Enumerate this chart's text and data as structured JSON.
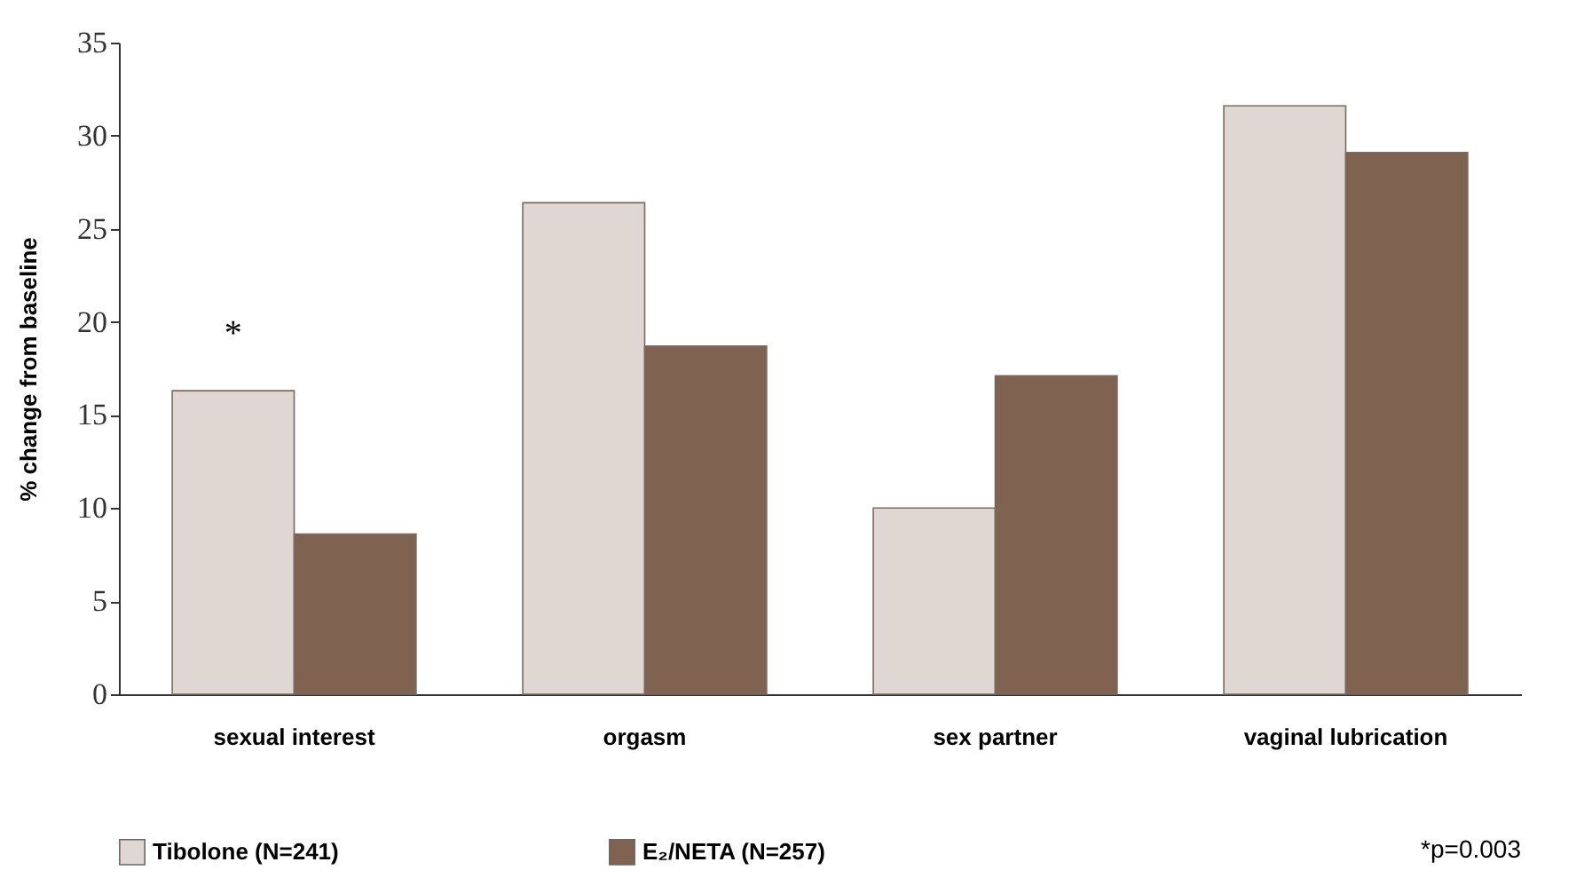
{
  "chart_data": {
    "type": "bar",
    "ylabel": "% change from baseline",
    "categories": [
      "sexual interest",
      "orgasm",
      "sex partner",
      "vaginal lubrication"
    ],
    "series": [
      {
        "name": "Tibolone (N=241)",
        "color": "#e0d7d2",
        "values": [
          16.3,
          26.4,
          10.0,
          31.6
        ]
      },
      {
        "name": "E₂/NETA (N=257)",
        "color": "#7f6350",
        "values": [
          8.6,
          18.7,
          17.1,
          29.1
        ]
      }
    ],
    "ylim": [
      0,
      35
    ],
    "yticks": [
      0,
      5,
      10,
      15,
      20,
      25,
      30,
      35
    ],
    "grid": false,
    "legend": "bottom",
    "annotations": [
      "*",
      "*p=0.003"
    ]
  }
}
